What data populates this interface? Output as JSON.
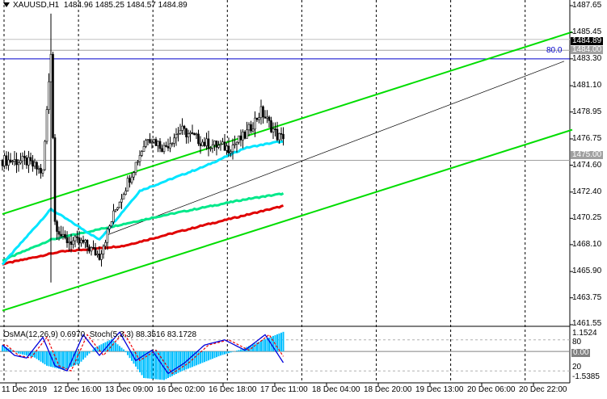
{
  "header": {
    "symbol": "XAUUSD,H1",
    "ohlc": "1484.96 1485.25 1484.57 1484.89"
  },
  "indicator_label": {
    "osma": "OsMA(12,26,9) 0.6970",
    "stoch": "Stoch(5,3,3) 88.3516 83.1728"
  },
  "price_tags": {
    "current": "1484.89",
    "level_1": "1484.00",
    "level_2": "1475.00",
    "blue_level_label": "80.0"
  },
  "indicator_axis": {
    "max": "1.1524",
    "min": "-1.5385",
    "zero": "0.00",
    "upper": "80",
    "lower": "20"
  },
  "colors": {
    "candle": "#000000",
    "channel": "#00dd00",
    "ma_fast": "#00e5ff",
    "ma_mid": "#00e88a",
    "ma_slow": "#e00000",
    "osma": "#00bfff",
    "stoch_main": "#0000dd",
    "stoch_signal": "#ee0000",
    "blue_line": "#0000cc"
  },
  "chart_data": {
    "type": "candlestick",
    "title": "XAUUSD,H1",
    "ylim": [
      1461.55,
      1487.65
    ],
    "y_ticks": [
      "1487.65",
      "1485.45",
      "1483.30",
      "1481.10",
      "1478.95",
      "1476.75",
      "1474.60",
      "1472.40",
      "1470.25",
      "1468.10",
      "1465.90",
      "1463.75",
      "1461.55"
    ],
    "x_ticks": [
      "11 Dec 2019",
      "12 Dec 16:00",
      "13 Dec 09:00",
      "16 Dec 02:00",
      "16 Dec 18:00",
      "17 Dec 11:00",
      "18 Dec 04:00",
      "18 Dec 20:00",
      "19 Dec 13:00",
      "20 Dec 06:00",
      "20 Dec 22:00"
    ],
    "bars": 140,
    "close_keypoints": [
      [
        0,
        1475
      ],
      [
        12,
        1474.9
      ],
      [
        20,
        1474
      ],
      [
        24,
        1484
      ],
      [
        26,
        1470
      ],
      [
        30,
        1468.5
      ],
      [
        40,
        1468.2
      ],
      [
        48,
        1467.2
      ],
      [
        56,
        1471
      ],
      [
        64,
        1474
      ],
      [
        72,
        1477
      ],
      [
        80,
        1476
      ],
      [
        88,
        1477.5
      ],
      [
        100,
        1476.4
      ],
      [
        112,
        1476
      ],
      [
        120,
        1477
      ],
      [
        128,
        1479
      ],
      [
        136,
        1477
      ],
      [
        148,
        1476
      ],
      [
        160,
        1477
      ],
      [
        166,
        1479
      ],
      [
        172,
        1473
      ],
      [
        180,
        1476
      ],
      [
        192,
        1478
      ],
      [
        200,
        1476
      ],
      [
        208,
        1474.2
      ],
      [
        212,
        1477
      ],
      [
        218,
        1480
      ],
      [
        224,
        1479
      ],
      [
        232,
        1478.5
      ],
      [
        240,
        1477.5
      ],
      [
        248,
        1479.5
      ],
      [
        256,
        1477.5
      ],
      [
        264,
        1480
      ],
      [
        270,
        1482
      ],
      [
        274,
        1484
      ],
      [
        279,
        1484.89
      ]
    ],
    "ma_fast": [
      [
        0,
        1466.5
      ],
      [
        24,
        1471
      ],
      [
        48,
        1468.5
      ],
      [
        68,
        1472.5
      ],
      [
        100,
        1474.5
      ],
      [
        120,
        1476
      ],
      [
        136,
        1476.5
      ],
      [
        160,
        1476.5
      ],
      [
        176,
        1476
      ],
      [
        200,
        1476
      ],
      [
        216,
        1477
      ],
      [
        240,
        1478
      ],
      [
        260,
        1477.5
      ],
      [
        279,
        1479
      ]
    ],
    "ma_mid": [
      [
        0,
        1466.8
      ],
      [
        24,
        1468.5
      ],
      [
        80,
        1470.5
      ],
      [
        120,
        1471.8
      ],
      [
        160,
        1472.8
      ],
      [
        200,
        1474
      ],
      [
        240,
        1475
      ],
      [
        279,
        1476.6
      ]
    ],
    "ma_slow": [
      [
        0,
        1466.5
      ],
      [
        28,
        1467.5
      ],
      [
        60,
        1468
      ],
      [
        100,
        1469.7
      ],
      [
        140,
        1471.3
      ],
      [
        180,
        1472.7
      ],
      [
        220,
        1473.8
      ],
      [
        260,
        1474.8
      ],
      [
        279,
        1475.3
      ]
    ],
    "channel_upper": [
      [
        0,
        1470.6
      ],
      [
        282,
        1485.5
      ]
    ],
    "channel_lower": [
      [
        0,
        1462.7
      ],
      [
        282,
        1477.5
      ]
    ],
    "channel_mid": [
      [
        52,
        1468.9
      ],
      [
        278,
        1483.1
      ]
    ],
    "h_levels": [
      1484.0,
      1475.0
    ],
    "blue_level": 1483.3,
    "osma_range": [
      -1.5385,
      1.1524
    ],
    "osma_keypoints": [
      [
        0,
        0.3
      ],
      [
        8,
        -0.1
      ],
      [
        16,
        -0.3
      ],
      [
        22,
        -0.7
      ],
      [
        30,
        -0.9
      ],
      [
        38,
        -0.6
      ],
      [
        46,
        0.2
      ],
      [
        54,
        0.6
      ],
      [
        60,
        0.1
      ],
      [
        70,
        -1.3
      ],
      [
        80,
        -1.4
      ],
      [
        88,
        -1.0
      ],
      [
        98,
        -0.6
      ],
      [
        108,
        -0.2
      ],
      [
        118,
        0.1
      ],
      [
        130,
        0.6
      ],
      [
        140,
        1.0
      ],
      [
        148,
        0.8
      ],
      [
        156,
        0.6
      ],
      [
        170,
        -0.2
      ],
      [
        184,
        -0.4
      ],
      [
        196,
        -0.3
      ],
      [
        208,
        -0.2
      ],
      [
        220,
        0.3
      ],
      [
        232,
        0.1
      ],
      [
        244,
        -0.1
      ],
      [
        256,
        -0.2
      ],
      [
        266,
        0.2
      ],
      [
        279,
        0.697
      ]
    ],
    "stoch_keypoints": [
      [
        0,
        70
      ],
      [
        6,
        50
      ],
      [
        12,
        45
      ],
      [
        20,
        85
      ],
      [
        26,
        30
      ],
      [
        32,
        20
      ],
      [
        40,
        90
      ],
      [
        48,
        50
      ],
      [
        58,
        95
      ],
      [
        66,
        40
      ],
      [
        74,
        60
      ],
      [
        82,
        15
      ],
      [
        90,
        35
      ],
      [
        100,
        70
      ],
      [
        110,
        80
      ],
      [
        120,
        60
      ],
      [
        130,
        90
      ],
      [
        140,
        30
      ],
      [
        150,
        55
      ],
      [
        160,
        85
      ],
      [
        170,
        15
      ],
      [
        180,
        40
      ],
      [
        194,
        70
      ],
      [
        206,
        25
      ],
      [
        216,
        65
      ],
      [
        228,
        15
      ],
      [
        238,
        40
      ],
      [
        250,
        80
      ],
      [
        258,
        35
      ],
      [
        266,
        75
      ],
      [
        279,
        88.35
      ]
    ]
  }
}
